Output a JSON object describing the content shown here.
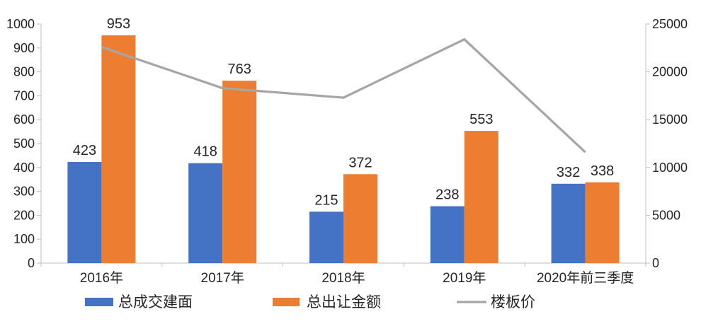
{
  "chart_data": {
    "type": "bar",
    "subtype": "grouped-bars-with-line-dual-axis",
    "title": "",
    "categories": [
      "2016年",
      "2017年",
      "2018年",
      "2019年",
      "2020年前三季度"
    ],
    "series": [
      {
        "name": "总成交建面",
        "chart": "bar",
        "axis": "left",
        "color": "#4472C4",
        "values": [
          423,
          418,
          215,
          238,
          332
        ],
        "data_labels": [
          "423",
          "418",
          "215",
          "238",
          "332"
        ]
      },
      {
        "name": "总出让金额",
        "chart": "bar",
        "axis": "left",
        "color": "#ED7D31",
        "values": [
          953,
          763,
          372,
          553,
          338
        ],
        "data_labels": [
          "953",
          "763",
          "372",
          "553",
          "338"
        ]
      },
      {
        "name": "楼板价",
        "chart": "line",
        "axis": "right",
        "color": "#A6A6A6",
        "values": [
          22600,
          18300,
          17300,
          23400,
          11600
        ],
        "data_labels": []
      }
    ],
    "left_axis": {
      "min": 0,
      "max": 1000,
      "step": 100,
      "tick_labels": [
        "0",
        "100",
        "200",
        "300",
        "400",
        "500",
        "600",
        "700",
        "800",
        "900",
        "1000"
      ]
    },
    "right_axis": {
      "min": 0,
      "max": 25000,
      "step": 5000,
      "tick_labels": [
        "0",
        "5000",
        "10000",
        "15000",
        "20000",
        "25000"
      ]
    },
    "grid": false,
    "legend_position": "bottom",
    "legend": [
      "总成交建面",
      "总出让金额",
      "楼板价"
    ],
    "colors": {
      "bar_series_1": "#4472C4",
      "bar_series_2": "#ED7D31",
      "line_series": "#A6A6A6",
      "axis_line": "#BFBFBF",
      "text": "#262626"
    }
  }
}
